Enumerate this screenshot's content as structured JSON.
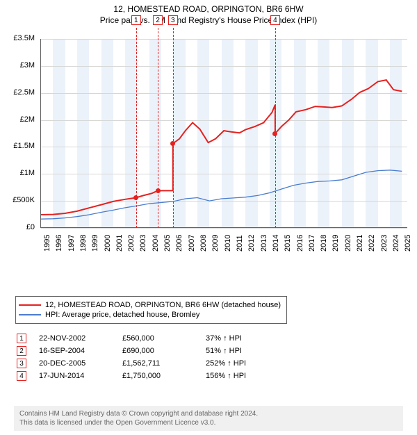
{
  "title": "12, HOMESTEAD ROAD, ORPINGTON, BR6 6HW",
  "subtitle": "Price paid vs. HM Land Registry's House Price Index (HPI)",
  "chart": {
    "type": "line",
    "xlim": [
      1995,
      2025.5
    ],
    "ylim": [
      0,
      3500000
    ],
    "yticks": [
      0,
      500000,
      1000000,
      1500000,
      2000000,
      2500000,
      3000000,
      3500000
    ],
    "ytick_labels": [
      "£0",
      "£500K",
      "£1M",
      "£1.5M",
      "£2M",
      "£2.5M",
      "£3M",
      "£3.5M"
    ],
    "xticks": [
      1995,
      1996,
      1997,
      1998,
      1999,
      2000,
      2001,
      2002,
      2003,
      2004,
      2005,
      2006,
      2007,
      2008,
      2009,
      2010,
      2011,
      2012,
      2013,
      2014,
      2015,
      2016,
      2017,
      2018,
      2019,
      2020,
      2021,
      2022,
      2023,
      2024,
      2025
    ],
    "grid_color": "#d7d7d7",
    "background_color": "#ffffff",
    "alt_bands": {
      "color": "#ecf2fa",
      "ranges": [
        [
          1996,
          1997
        ],
        [
          1998,
          1999
        ],
        [
          2000,
          2001
        ],
        [
          2002,
          2003
        ],
        [
          2004,
          2005
        ],
        [
          2006,
          2007
        ],
        [
          2008,
          2009
        ],
        [
          2010,
          2011
        ],
        [
          2012,
          2013
        ],
        [
          2014,
          2015
        ],
        [
          2016,
          2017
        ],
        [
          2018,
          2019
        ],
        [
          2020,
          2021
        ],
        [
          2022,
          2023
        ],
        [
          2024,
          2025
        ]
      ]
    },
    "series": [
      {
        "name": "12, HOMESTEAD ROAD, ORPINGTON, BR6 6HW (detached house)",
        "color": "#e5211f",
        "width": 2,
        "data": [
          [
            1995.0,
            245000
          ],
          [
            1996.0,
            250000
          ],
          [
            1997.0,
            270000
          ],
          [
            1998.0,
            310000
          ],
          [
            1999.0,
            370000
          ],
          [
            2000.0,
            430000
          ],
          [
            2001.0,
            490000
          ],
          [
            2002.0,
            530000
          ],
          [
            2002.9,
            560000
          ],
          [
            2003.5,
            600000
          ],
          [
            2004.2,
            640000
          ],
          [
            2004.71,
            690000
          ],
          [
            2005.3,
            690000
          ],
          [
            2005.965,
            690000
          ],
          [
            2005.966,
            1562711
          ],
          [
            2006.5,
            1650000
          ],
          [
            2007.0,
            1800000
          ],
          [
            2007.6,
            1950000
          ],
          [
            2008.2,
            1830000
          ],
          [
            2008.9,
            1580000
          ],
          [
            2009.5,
            1650000
          ],
          [
            2010.2,
            1800000
          ],
          [
            2010.8,
            1780000
          ],
          [
            2011.5,
            1760000
          ],
          [
            2012.0,
            1820000
          ],
          [
            2012.8,
            1880000
          ],
          [
            2013.5,
            1950000
          ],
          [
            2014.2,
            2140000
          ],
          [
            2014.46,
            2280000
          ],
          [
            2014.461,
            1750000
          ],
          [
            2015.0,
            1880000
          ],
          [
            2015.6,
            2000000
          ],
          [
            2016.2,
            2150000
          ],
          [
            2017.0,
            2190000
          ],
          [
            2017.8,
            2250000
          ],
          [
            2018.5,
            2240000
          ],
          [
            2019.2,
            2230000
          ],
          [
            2020.0,
            2260000
          ],
          [
            2020.8,
            2380000
          ],
          [
            2021.5,
            2510000
          ],
          [
            2022.2,
            2580000
          ],
          [
            2023.0,
            2710000
          ],
          [
            2023.7,
            2740000
          ],
          [
            2024.3,
            2560000
          ],
          [
            2025.0,
            2530000
          ]
        ]
      },
      {
        "name": "HPI: Average price, detached house, Bromley",
        "color": "#4a7dcf",
        "width": 1.3,
        "data": [
          [
            1995.0,
            165000
          ],
          [
            1996.0,
            170000
          ],
          [
            1997.0,
            185000
          ],
          [
            1998.0,
            210000
          ],
          [
            1999.0,
            245000
          ],
          [
            2000.0,
            290000
          ],
          [
            2001.0,
            330000
          ],
          [
            2002.0,
            375000
          ],
          [
            2003.0,
            410000
          ],
          [
            2004.0,
            450000
          ],
          [
            2005.0,
            470000
          ],
          [
            2006.0,
            490000
          ],
          [
            2007.0,
            540000
          ],
          [
            2008.0,
            560000
          ],
          [
            2009.0,
            500000
          ],
          [
            2010.0,
            540000
          ],
          [
            2011.0,
            555000
          ],
          [
            2012.0,
            570000
          ],
          [
            2013.0,
            600000
          ],
          [
            2014.0,
            650000
          ],
          [
            2015.0,
            720000
          ],
          [
            2016.0,
            790000
          ],
          [
            2017.0,
            830000
          ],
          [
            2018.0,
            860000
          ],
          [
            2019.0,
            870000
          ],
          [
            2020.0,
            890000
          ],
          [
            2021.0,
            960000
          ],
          [
            2022.0,
            1030000
          ],
          [
            2023.0,
            1060000
          ],
          [
            2024.0,
            1070000
          ],
          [
            2025.0,
            1050000
          ]
        ]
      }
    ],
    "markers": [
      {
        "n": "1",
        "x": 2002.9,
        "y": 560000
      },
      {
        "n": "2",
        "x": 2004.71,
        "y": 690000
      },
      {
        "n": "3",
        "x": 2005.966,
        "y": 1562711
      },
      {
        "n": "4",
        "x": 2014.461,
        "y": 1750000
      }
    ]
  },
  "legend": {
    "items": [
      {
        "color": "#e5211f",
        "label": "12, HOMESTEAD ROAD, ORPINGTON, BR6 6HW (detached house)"
      },
      {
        "color": "#4a7dcf",
        "label": "HPI: Average price, detached house, Bromley"
      }
    ]
  },
  "transactions": [
    {
      "n": "1",
      "date": "22-NOV-2002",
      "price": "£560,000",
      "pct": "37% ↑ HPI"
    },
    {
      "n": "2",
      "date": "16-SEP-2004",
      "price": "£690,000",
      "pct": "51% ↑ HPI"
    },
    {
      "n": "3",
      "date": "20-DEC-2005",
      "price": "£1,562,711",
      "pct": "252% ↑ HPI"
    },
    {
      "n": "4",
      "date": "17-JUN-2014",
      "price": "£1,750,000",
      "pct": "156% ↑ HPI"
    }
  ],
  "footer": {
    "line1": "Contains HM Land Registry data © Crown copyright and database right 2024.",
    "line2": "This data is licensed under the Open Government Licence v3.0."
  }
}
